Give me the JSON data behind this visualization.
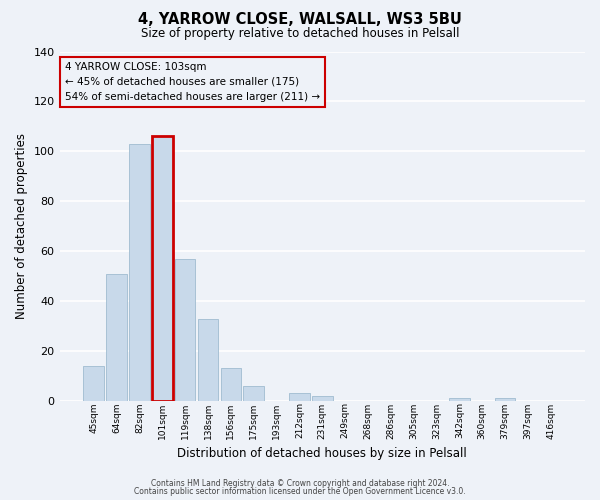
{
  "title1": "4, YARROW CLOSE, WALSALL, WS3 5BU",
  "title2": "Size of property relative to detached houses in Pelsall",
  "xlabel": "Distribution of detached houses by size in Pelsall",
  "ylabel": "Number of detached properties",
  "categories": [
    "45sqm",
    "64sqm",
    "82sqm",
    "101sqm",
    "119sqm",
    "138sqm",
    "156sqm",
    "175sqm",
    "193sqm",
    "212sqm",
    "231sqm",
    "249sqm",
    "268sqm",
    "286sqm",
    "305sqm",
    "323sqm",
    "342sqm",
    "360sqm",
    "379sqm",
    "397sqm",
    "416sqm"
  ],
  "values": [
    14,
    51,
    103,
    106,
    57,
    33,
    13,
    6,
    0,
    3,
    2,
    0,
    0,
    0,
    0,
    0,
    1,
    0,
    1,
    0,
    0
  ],
  "bar_color": "#c8d9ea",
  "bar_edge_color": "#a0bcd0",
  "highlight_bar_index": 3,
  "highlight_bar_edge_color": "#cc0000",
  "annotation_box_edge_color": "#cc0000",
  "annotation_lines": [
    "4 YARROW CLOSE: 103sqm",
    "← 45% of detached houses are smaller (175)",
    "54% of semi-detached houses are larger (211) →"
  ],
  "ylim": [
    0,
    140
  ],
  "yticks": [
    0,
    20,
    40,
    60,
    80,
    100,
    120,
    140
  ],
  "footer1": "Contains HM Land Registry data © Crown copyright and database right 2024.",
  "footer2": "Contains public sector information licensed under the Open Government Licence v3.0.",
  "background_color": "#eef2f8",
  "plot_bg_color": "#eef2f8",
  "grid_color": "#ffffff"
}
